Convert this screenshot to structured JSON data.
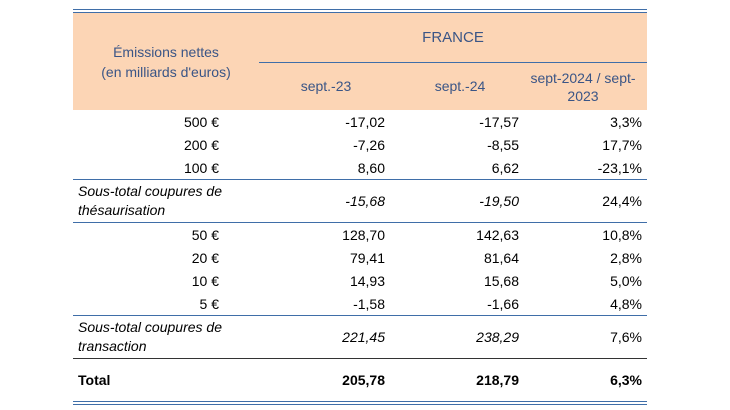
{
  "header": {
    "row_label_line1": "Émissions nettes",
    "row_label_line2": "(en milliards d'euros)",
    "group": "FRANCE",
    "col1": "sept.-23",
    "col2": "sept.-24",
    "col3_line1": "sept-2024 / sept-",
    "col3_line2": "2023"
  },
  "hoarding_rows": [
    {
      "label": "500 €",
      "v1": "-17,02",
      "v2": "-17,57",
      "v3": "3,3%"
    },
    {
      "label": "200 €",
      "v1": "-7,26",
      "v2": "-8,55",
      "v3": "17,7%"
    },
    {
      "label": "100 €",
      "v1": "8,60",
      "v2": "6,62",
      "v3": "-23,1%"
    }
  ],
  "hoarding_subtotal": {
    "label_line1": "Sous-total coupures de",
    "label_line2": "thésaurisation",
    "v1": "-15,68",
    "v2": "-19,50",
    "v3": "24,4%"
  },
  "transaction_rows": [
    {
      "label": "50 €",
      "v1": "128,70",
      "v2": "142,63",
      "v3": "10,8%"
    },
    {
      "label": "20 €",
      "v1": "79,41",
      "v2": "81,64",
      "v3": "2,8%"
    },
    {
      "label": "10 €",
      "v1": "14,93",
      "v2": "15,68",
      "v3": "5,0%"
    },
    {
      "label": "5 €",
      "v1": "-1,58",
      "v2": "-1,66",
      "v3": "4,8%"
    }
  ],
  "transaction_subtotal": {
    "label_line1": "Sous-total coupures de",
    "label_line2": "transaction",
    "v1": "221,45",
    "v2": "238,29",
    "v3": "7,6%"
  },
  "total": {
    "label": "Total",
    "v1": "205,78",
    "v2": "218,79",
    "v3": "6,3%"
  },
  "colors": {
    "header_bg": "#fcd5b5",
    "rule": "#3f6ea8",
    "header_text": "#3a5586"
  }
}
